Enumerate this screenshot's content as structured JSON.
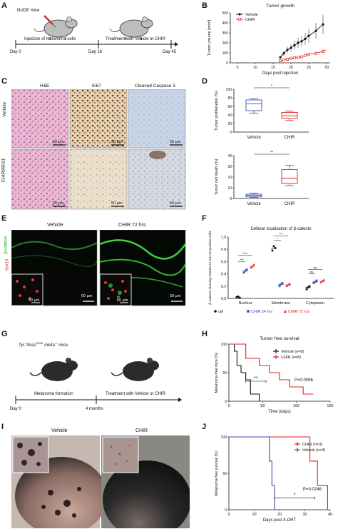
{
  "panels": {
    "A": {
      "letter": "A",
      "mouse_label": "NUDE mice",
      "day0": "Day 0",
      "day16": "Day 16",
      "day45": "Day 45",
      "step1": "Injection of melanoma cells",
      "step2": "Treatment with Vehicle or CHIR"
    },
    "B": {
      "letter": "B",
      "title": "Tumor growth",
      "ylabel": "Tumor volume [mm³]",
      "xlabel": "Days post injection",
      "sig": "***",
      "legend": [
        "Vehicle",
        "CHIR"
      ]
    },
    "C": {
      "letter": "C",
      "cols": [
        "H&E",
        "Ki67",
        "Cleaved Caspase 3"
      ],
      "rows": [
        "Vehicle",
        "CHIR99021"
      ],
      "scale": "50 µm"
    },
    "D": {
      "letter": "D",
      "top_ylabel": "Tumor proliferation (%)",
      "bottom_ylabel": "Tumor cell death (%)",
      "top_sig": "*",
      "bottom_sig": "**",
      "cats": [
        "Vehicle",
        "CHIR"
      ]
    },
    "E": {
      "letter": "E",
      "col1": "Vehicle",
      "col2": "CHIR 72 hrs",
      "marker1": "Sox10",
      "marker2": "β-catenin",
      "scale": "50 µm"
    },
    "F": {
      "letter": "F",
      "title": "Cellular localization of β-catenin",
      "ylabel": "β-catenin staining relative to Sox10 positive cells",
      "cats": [
        "Nuclear",
        "Membrane",
        "Cytoplasm"
      ],
      "sigs": [
        "***",
        "****",
        "*",
        "***",
        "ns",
        "ns"
      ],
      "legend": [
        "ctrl",
        "CHIR 24 hrs",
        "CHIR 72 hrs"
      ]
    },
    "G": {
      "letter": "G",
      "genotype_pre": "Tyr::Nras",
      "genotype_sup": "Q61K",
      "genotype_mid": " Ink4a",
      "genotype_sup2": "-/-",
      "genotype_post": " mice",
      "day0": "Day 0",
      "months": "4 months",
      "step1": "Melanoma formation",
      "step2": "Treatment with Vehicle or CHIR"
    },
    "H": {
      "letter": "H",
      "title": "Tumor free survival",
      "ylabel": "Melanoma-free mice (%)",
      "xlabel": "Time (days)",
      "sig": "**",
      "pval": "P=0.0096",
      "legend": [
        "Vehicle (n=8)",
        "CHIR (n=8)"
      ]
    },
    "I": {
      "letter": "I",
      "col1": "Vehicle",
      "col2": "CHIR"
    },
    "J": {
      "letter": "J",
      "ylabel": "Melanoma-free survival (%)",
      "xlabel": "Days post 4-OHT",
      "sig": "*",
      "pval": "P=0.0246",
      "legend": [
        "CHIR (n=3)",
        "Vehicle (n=3)"
      ]
    }
  },
  "chart_data": [
    {
      "type": "line",
      "panel": "B",
      "title": "Tumor growth",
      "xlabel": "Days post injection",
      "ylabel": "Tumor volume [mm³]",
      "xlim": [
        3,
        31
      ],
      "ylim": [
        0,
        500
      ],
      "xticks": [
        5,
        10,
        15,
        20,
        25,
        30
      ],
      "yticks": [
        0,
        100,
        200,
        300,
        400,
        500
      ],
      "series": [
        {
          "name": "Vehicle",
          "color": "#111111",
          "x": [
            17,
            18,
            19,
            20,
            21,
            22,
            23,
            24,
            25,
            27,
            29
          ],
          "y": [
            55,
            95,
            130,
            150,
            175,
            200,
            215,
            240,
            270,
            320,
            385
          ]
        },
        {
          "name": "CHIR",
          "color": "#e02020",
          "x": [
            17,
            18,
            19,
            20,
            21,
            22,
            23,
            24,
            25,
            27,
            29
          ],
          "y": [
            20,
            30,
            35,
            45,
            50,
            55,
            60,
            75,
            85,
            95,
            115
          ]
        }
      ]
    },
    {
      "type": "box",
      "panel": "D-top",
      "ylabel": "Tumor proliferation (%)",
      "ylim": [
        0,
        100
      ],
      "yticks": [
        0,
        20,
        40,
        60,
        80,
        100
      ],
      "categories": [
        "Vehicle",
        "CHIR"
      ],
      "colors": [
        "#3b4fb5",
        "#e02020"
      ],
      "boxes": [
        {
          "min": 44,
          "q1": 50,
          "median": 66,
          "q3": 75,
          "max": 78
        },
        {
          "min": 27,
          "q1": 32,
          "median": 38,
          "q3": 46,
          "max": 49
        }
      ]
    },
    {
      "type": "box",
      "panel": "D-bottom",
      "ylabel": "Tumor cell death (%)",
      "ylim": [
        0,
        40
      ],
      "yticks": [
        0,
        10,
        20,
        30,
        40
      ],
      "categories": [
        "Vehicle",
        "CHIR"
      ],
      "colors": [
        "#3b4fb5",
        "#e02020"
      ],
      "boxes": [
        {
          "min": 1,
          "q1": 1.5,
          "median": 3,
          "q3": 4,
          "max": 5
        },
        {
          "min": 12,
          "q1": 14,
          "median": 19,
          "q3": 27,
          "max": 31
        }
      ]
    },
    {
      "type": "scatter",
      "panel": "F",
      "title": "Cellular localization of β-catenin",
      "ylim": [
        0,
        1
      ],
      "yticks": [
        0,
        0.2,
        0.4,
        0.6,
        0.8,
        1.0
      ],
      "categories": [
        "Nuclear",
        "Membrane",
        "Cytoplasm"
      ],
      "series": [
        {
          "name": "ctrl",
          "color": "#111111",
          "values": [
            [
              0.02,
              0.03,
              0.01
            ],
            [
              0.78,
              0.85,
              0.82
            ],
            [
              0.15,
              0.18,
              0.2
            ]
          ]
        },
        {
          "name": "CHIR 24 hrs",
          "color": "#3b4fb5",
          "values": [
            [
              0.42,
              0.45,
              0.47
            ],
            [
              0.2,
              0.23,
              0.25
            ],
            [
              0.25,
              0.27,
              0.29
            ]
          ]
        },
        {
          "name": "CHIR 72 hrs",
          "color": "#e02020",
          "values": [
            [
              0.5,
              0.52,
              0.55
            ],
            [
              0.2,
              0.22,
              0.24
            ],
            [
              0.26,
              0.28,
              0.3
            ]
          ]
        }
      ]
    },
    {
      "type": "line",
      "panel": "H",
      "title": "Tumor free survival",
      "xlabel": "Time (days)",
      "ylabel": "Melanoma-free mice (%)",
      "xlim": [
        0,
        150
      ],
      "ylim": [
        0,
        100
      ],
      "xticks": [
        0,
        50,
        100,
        150
      ],
      "yticks": [
        0,
        50,
        100
      ],
      "series": [
        {
          "name": "Vehicle (n=8)",
          "color": "#111111",
          "x": [
            0,
            8,
            8,
            12,
            12,
            18,
            18,
            25,
            25,
            32,
            32,
            45,
            45
          ],
          "y": [
            100,
            100,
            87.5,
            87.5,
            62.5,
            62.5,
            50,
            50,
            37.5,
            37.5,
            12.5,
            12.5,
            0
          ]
        },
        {
          "name": "CHIR (n=8)",
          "color": "#e02020",
          "x": [
            0,
            25,
            25,
            45,
            45,
            60,
            60,
            75,
            75,
            90,
            90,
            110,
            110,
            125
          ],
          "y": [
            100,
            100,
            75,
            75,
            62.5,
            62.5,
            50,
            50,
            37.5,
            37.5,
            25,
            25,
            12.5,
            12.5
          ]
        }
      ]
    },
    {
      "type": "line",
      "panel": "J",
      "xlabel": "Days post 4-OHT",
      "ylabel": "Melanoma-free survival (%)",
      "xlim": [
        0,
        40
      ],
      "ylim": [
        0,
        100
      ],
      "xticks": [
        0,
        10,
        20,
        30,
        40
      ],
      "yticks": [
        0,
        50,
        100
      ],
      "series": [
        {
          "name": "CHIR (n=3)",
          "color": "#e02020",
          "x": [
            0,
            32,
            32,
            35,
            35,
            39,
            39
          ],
          "y": [
            100,
            100,
            66.7,
            66.7,
            33.3,
            33.3,
            0
          ]
        },
        {
          "name": "Vehicle (n=3)",
          "color": "#3b4fb5",
          "x": [
            0,
            16,
            16,
            17,
            17,
            18,
            18
          ],
          "y": [
            100,
            100,
            66.7,
            66.7,
            33.3,
            33.3,
            0
          ]
        }
      ]
    }
  ]
}
